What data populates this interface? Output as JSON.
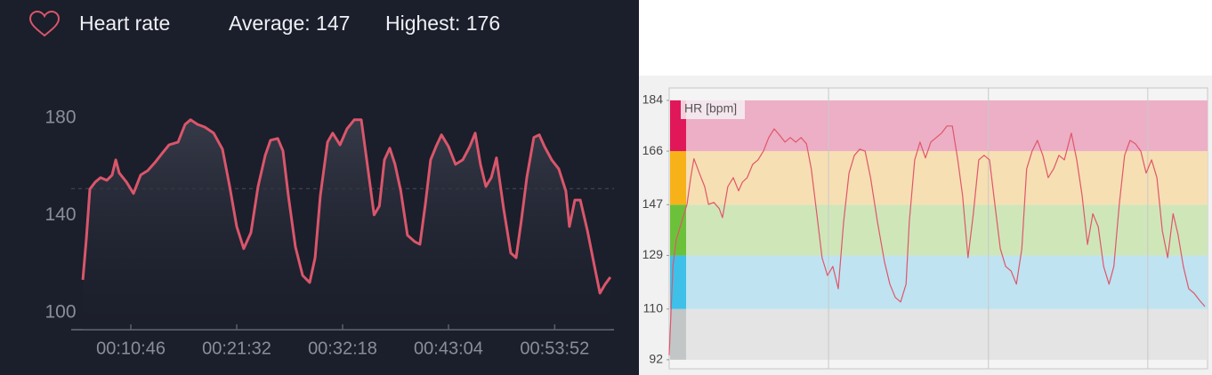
{
  "chart_data": [
    {
      "type": "line",
      "title": "Heart rate",
      "stats": [
        "Average: 147",
        "Highest: 176"
      ],
      "color": "#d9566b",
      "x": [
        353,
        375,
        396,
        429,
        461,
        499,
        532,
        554,
        575,
        619,
        662,
        706,
        749,
        793,
        836,
        879,
        934,
        977,
        1010,
        1053,
        1097,
        1151,
        1205,
        1249,
        1292,
        1335,
        1379,
        1422,
        1466,
        1498,
        1542,
        1574,
        1607,
        1650,
        1694,
        1737,
        1770,
        1802,
        1846,
        1878,
        1922,
        1965,
        2009,
        2052,
        2085,
        2130,
        2162,
        2193,
        2226,
        2258,
        2293,
        2334,
        2378,
        2410,
        2443,
        2475,
        2508,
        2541,
        2584,
        2627,
        2671,
        2714,
        2747,
        2779,
        2812,
        2845,
        2877,
        2921,
        2964,
        2997,
        3029,
        3062,
        3105,
        3138,
        3170,
        3214,
        3257,
        3300,
        3322,
        3355,
        3388,
        3432,
        3475,
        3508,
        3540,
        3572
      ],
      "values": [
        113.5,
        130.7,
        150.8,
        153.7,
        155.5,
        154.4,
        156.6,
        162.8,
        157.4,
        153.7,
        149,
        156.6,
        158.4,
        161.7,
        165.4,
        169,
        170.1,
        177.4,
        179.3,
        177.4,
        176.3,
        173.8,
        167.2,
        151.9,
        135.4,
        126.3,
        132.9,
        151.9,
        164.7,
        170.9,
        171.6,
        166.5,
        148.2,
        127,
        115.3,
        112.4,
        122.6,
        148.2,
        170.1,
        173.8,
        169,
        175.6,
        179.3,
        179.3,
        162.8,
        140.2,
        143.8,
        162.8,
        167.6,
        161,
        150,
        131.8,
        129.2,
        128.1,
        144.6,
        162.8,
        168.3,
        173.1,
        168.3,
        161,
        162.8,
        168.3,
        173.8,
        161,
        151.9,
        155.5,
        163.6,
        142.7,
        124.5,
        122.6,
        138,
        155.5,
        172,
        173.1,
        168.3,
        162.8,
        159.1,
        150,
        135.4,
        146.3,
        146.3,
        133.6,
        119,
        108,
        111.7,
        114.6
      ],
      "reference_line": 151,
      "xlim": [
        282,
        3594
      ],
      "ylim": [
        93,
        192
      ],
      "yticks": [
        100,
        140,
        180
      ],
      "xticks": [
        {
          "value": 646,
          "label": "00:10:46"
        },
        {
          "value": 1292,
          "label": "00:21:32"
        },
        {
          "value": 1938,
          "label": "00:32:18"
        },
        {
          "value": 2584,
          "label": "00:43:04"
        },
        {
          "value": 3232,
          "label": "00:53:52"
        }
      ]
    },
    {
      "type": "line",
      "axis_label": "HR [bpm]",
      "color": "#e0566c",
      "x": [
        0,
        0.7,
        1.3,
        2.3,
        3.3,
        4.0,
        4.6,
        5.6,
        6.6,
        7.3,
        8.3,
        9.3,
        9.9,
        10.9,
        11.9,
        12.9,
        13.6,
        14.5,
        15.5,
        16.5,
        17.5,
        18.5,
        19.5,
        20.5,
        21.5,
        22.5,
        23.5,
        24.5,
        25.5,
        26.4,
        27.4,
        28.4,
        29.4,
        30.4,
        31.4,
        32.4,
        33.4,
        34.4,
        35.4,
        36.4,
        37.4,
        38.7,
        40.0,
        41.0,
        42.0,
        43.0,
        44.0,
        44.6,
        45.6,
        46.6,
        47.6,
        48.6,
        49.6,
        50.6,
        51.6,
        52.6,
        53.6,
        54.5,
        55.5,
        56.5,
        57.5,
        58.5,
        59.5,
        60.5,
        61.5,
        62.5,
        63.5,
        64.5,
        65.5,
        66.4,
        67.4,
        68.4,
        69.4,
        70.4,
        71.4,
        72.4,
        73.4,
        74.7,
        75.7,
        76.7,
        77.7,
        78.7,
        79.7,
        80.7,
        81.7,
        82.6,
        83.6,
        84.6,
        85.6,
        86.6,
        87.6,
        88.6,
        89.6,
        90.6,
        91.6,
        92.6,
        93.6,
        94.5,
        95.5,
        96.5,
        97.5,
        98.5,
        99.5
      ],
      "values": [
        93.6,
        125.1,
        134.5,
        140.8,
        147.1,
        156.6,
        163.3,
        158.2,
        153.4,
        147.1,
        147.8,
        145.6,
        142.4,
        153.4,
        156.6,
        151.9,
        155,
        156.6,
        161.3,
        162.9,
        166,
        170.8,
        173.9,
        171.7,
        169.2,
        170.8,
        169.2,
        170.8,
        168.6,
        159.7,
        144,
        128.2,
        121.9,
        125.1,
        117.2,
        140.8,
        158.2,
        164.5,
        166.7,
        166,
        156.6,
        140.8,
        126.7,
        118.8,
        114.1,
        112.5,
        118.8,
        140.8,
        162.9,
        169.2,
        163.6,
        169.2,
        170.8,
        172.4,
        174.9,
        174.9,
        162.9,
        150.3,
        128.2,
        143.8,
        162.9,
        164.5,
        162.9,
        147.1,
        131.4,
        125.1,
        123.5,
        118.8,
        131.4,
        159.7,
        166,
        169.8,
        164.5,
        156.6,
        159.7,
        164.5,
        162.9,
        172.4,
        162.9,
        150.3,
        132.9,
        143.8,
        139.1,
        125.1,
        118.8,
        125.1,
        147.1,
        164.5,
        169.8,
        168.6,
        166,
        158.2,
        162.9,
        156.6,
        137.7,
        128.2,
        143.8,
        136.6,
        125.1,
        117.2,
        115.6,
        113.1,
        110.9
      ],
      "xlim": [
        0,
        100
      ],
      "ylim": [
        88.8,
        188.4
      ],
      "yticks": [
        92,
        110,
        129,
        147,
        166,
        184
      ],
      "zone_colors": [
        "#e3e4e3",
        "#bfe3f1",
        "#cfe6b9",
        "#f6dfb2",
        "#ecafc5"
      ],
      "zone_bar_colors": [
        "#c2c6c6",
        "#3fc0e8",
        "#6cc13a",
        "#f7b21a",
        "#e0185a"
      ],
      "vgrid": [
        29.6,
        59.3,
        88.9
      ]
    }
  ]
}
